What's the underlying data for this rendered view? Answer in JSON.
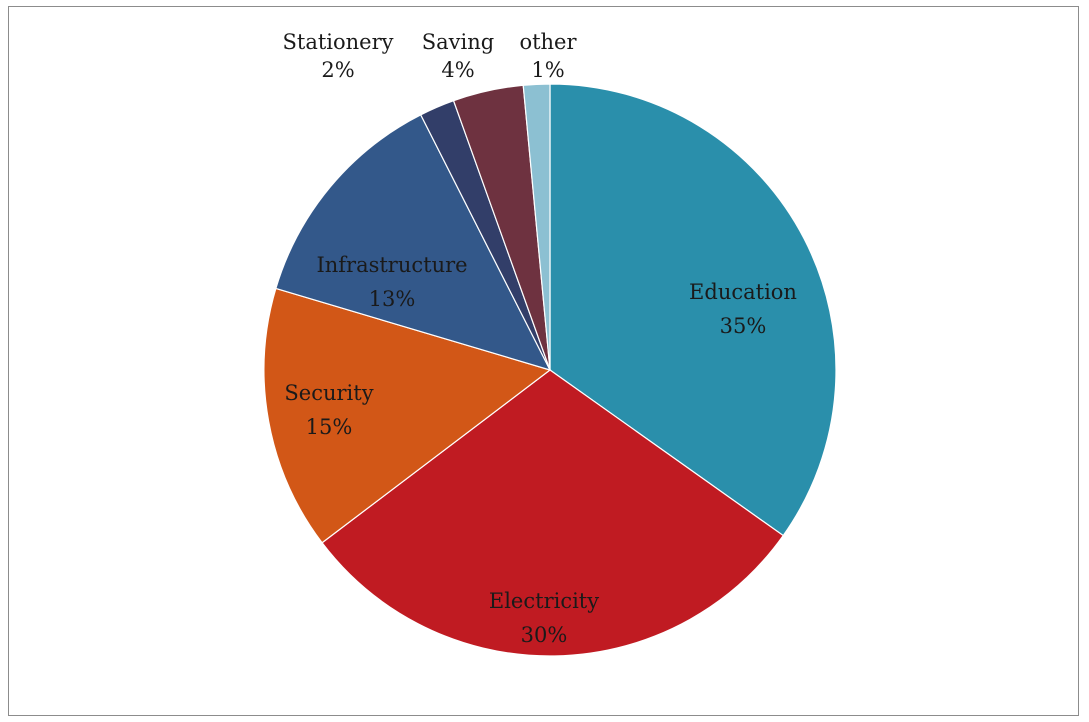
{
  "chart_data": {
    "type": "pie",
    "title": "",
    "slices": [
      {
        "label": "Education",
        "percent_label": "35%",
        "value": 35,
        "color": "#2A8FAB"
      },
      {
        "label": "Electricity",
        "percent_label": "30%",
        "value": 30,
        "color": "#C01B22"
      },
      {
        "label": "Security",
        "percent_label": "15%",
        "value": 15,
        "color": "#D25717"
      },
      {
        "label": "Infrastructure",
        "percent_label": "13%",
        "value": 13,
        "color": "#33588A"
      },
      {
        "label": "Stationery",
        "percent_label": "2%",
        "value": 2,
        "color": "#323E69"
      },
      {
        "label": "Saving",
        "percent_label": "4%",
        "value": 4,
        "color": "#6E3240"
      },
      {
        "label": "other",
        "percent_label": "1%",
        "value": 1.5,
        "color": "#8CC0D2"
      }
    ],
    "start_angle": "12 o'clock",
    "direction": "clockwise",
    "legend": "none"
  }
}
